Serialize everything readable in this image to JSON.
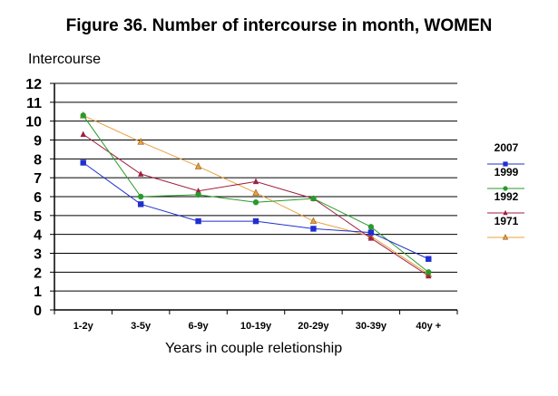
{
  "chart_data": {
    "type": "line",
    "title": "Figure 36. Number of intercourse in month, WOMEN",
    "ylabel": "Intercourse",
    "xlabel": "Years in couple reletionship",
    "categories": [
      "1-2y",
      "3-5y",
      "6-9y",
      "10-19y",
      "20-29y",
      "30-39y",
      "40y +"
    ],
    "ylim": [
      0,
      12
    ],
    "yticks": [
      0,
      1,
      2,
      3,
      4,
      5,
      6,
      7,
      8,
      9,
      10,
      11,
      12
    ],
    "grid": true,
    "legend_position": "right",
    "series": [
      {
        "name": "2007",
        "color": "#1f2fd0",
        "marker": "square",
        "values": [
          7.8,
          5.6,
          4.7,
          4.7,
          4.3,
          4.1,
          2.7
        ]
      },
      {
        "name": "1999",
        "color": "#2a9a2a",
        "marker": "circle",
        "values": [
          10.3,
          6.0,
          6.1,
          5.7,
          5.9,
          4.4,
          2.0
        ]
      },
      {
        "name": "1992",
        "color": "#a02040",
        "marker": "triangle",
        "values": [
          9.3,
          7.2,
          6.3,
          6.8,
          5.9,
          3.8,
          1.8
        ]
      },
      {
        "name": "1971",
        "color": "#e8a040",
        "marker": "triangle",
        "values": [
          10.3,
          8.9,
          7.6,
          6.2,
          4.7,
          3.9,
          1.9
        ]
      }
    ]
  }
}
